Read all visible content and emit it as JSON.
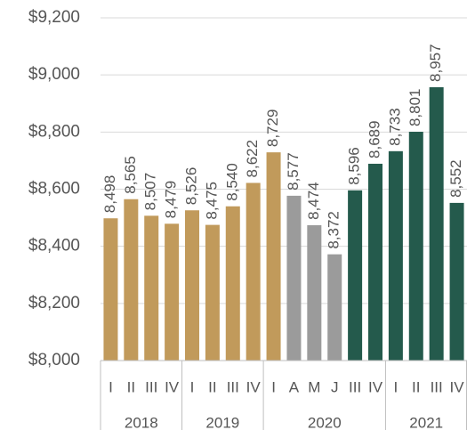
{
  "chart_data": {
    "type": "bar",
    "ylim": [
      8000,
      9200
    ],
    "yticks": [
      {
        "value": 8000,
        "label": "$8,000"
      },
      {
        "value": 8200,
        "label": "$8,200"
      },
      {
        "value": 8400,
        "label": "$8,400"
      },
      {
        "value": 8600,
        "label": "$8,600"
      },
      {
        "value": 8800,
        "label": "$8,800"
      },
      {
        "value": 9000,
        "label": "$9,000"
      },
      {
        "value": 9200,
        "label": "$9,200"
      }
    ],
    "grid": true,
    "groups": [
      {
        "name": "2018",
        "categories": [
          "I",
          "II",
          "III",
          "IV"
        ],
        "values": [
          8498,
          8565,
          8507,
          8479
        ],
        "value_labels": [
          "8,498",
          "8,565",
          "8,507",
          "8,479"
        ],
        "colors": [
          "#c19a5b",
          "#c19a5b",
          "#c19a5b",
          "#c19a5b"
        ]
      },
      {
        "name": "2019",
        "categories": [
          "I",
          "II",
          "III",
          "IV"
        ],
        "values": [
          8526,
          8475,
          8540,
          8622
        ],
        "value_labels": [
          "8,526",
          "8,475",
          "8,540",
          "8,622"
        ],
        "colors": [
          "#c19a5b",
          "#c19a5b",
          "#c19a5b",
          "#c19a5b"
        ]
      },
      {
        "name": "2020",
        "categories": [
          "I",
          "A",
          "M",
          "J",
          "III",
          "IV"
        ],
        "values": [
          8729,
          8577,
          8474,
          8372,
          8596,
          8689
        ],
        "value_labels": [
          "8,729",
          "8,577",
          "8,474",
          "8,372",
          "8,596",
          "8,689"
        ],
        "colors": [
          "#c19a5b",
          "#9b9b9b",
          "#9b9b9b",
          "#9b9b9b",
          "#245a4c",
          "#245a4c"
        ]
      },
      {
        "name": "2021",
        "categories": [
          "I",
          "II",
          "III",
          "IV"
        ],
        "values": [
          8733,
          8801,
          8957,
          8552
        ],
        "value_labels": [
          "8,733",
          "8,801",
          "8,957",
          "8,552"
        ],
        "colors": [
          "#245a4c",
          "#245a4c",
          "#245a4c",
          "#245a4c"
        ]
      }
    ]
  }
}
